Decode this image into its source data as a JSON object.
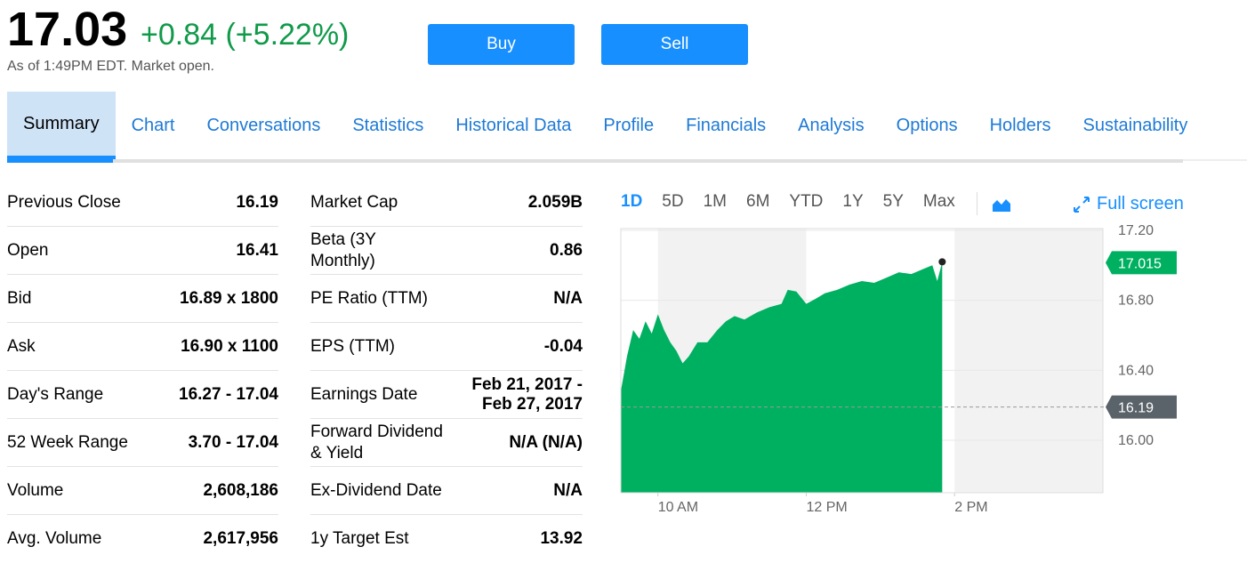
{
  "header": {
    "price": "17.03",
    "change": "+0.84 (+5.22%)",
    "as_of": "As of 1:49PM EDT. Market open."
  },
  "buttons": [
    "Buy",
    "Sell"
  ],
  "tabs": [
    "Summary",
    "Chart",
    "Conversations",
    "Statistics",
    "Historical Data",
    "Profile",
    "Financials",
    "Analysis",
    "Options",
    "Holders",
    "Sustainability"
  ],
  "summary_left": [
    [
      "Previous Close",
      "16.19"
    ],
    [
      "Open",
      "16.41"
    ],
    [
      "Bid",
      "16.89 x 1800"
    ],
    [
      "Ask",
      "16.90 x 1100"
    ],
    [
      "Day's Range",
      "16.27 - 17.04"
    ],
    [
      "52 Week Range",
      "3.70 - 17.04"
    ],
    [
      "Volume",
      "2,608,186"
    ],
    [
      "Avg. Volume",
      "2,617,956"
    ]
  ],
  "summary_right": [
    [
      "Market Cap",
      "2.059B"
    ],
    [
      "Beta (3Y\nMonthly)",
      "0.86"
    ],
    [
      "PE Ratio (TTM)",
      "N/A"
    ],
    [
      "EPS (TTM)",
      "-0.04"
    ],
    [
      "Earnings Date",
      "Feb 21, 2017 -\nFeb 27, 2017"
    ],
    [
      "Forward Dividend\n& Yield",
      "N/A (N/A)"
    ],
    [
      "Ex-Dividend Date",
      "N/A"
    ],
    [
      "1y Target Est",
      "13.92"
    ]
  ],
  "range_buttons": [
    "1D",
    "5D",
    "1M",
    "6M",
    "YTD",
    "1Y",
    "5Y",
    "Max"
  ],
  "full_screen": "Full screen",
  "chart_data": {
    "type": "area",
    "color": "#00b061",
    "x": [
      570,
      575,
      580,
      585,
      590,
      595,
      600,
      605,
      610,
      615,
      620,
      625,
      632,
      640,
      648,
      655,
      662,
      670,
      680,
      690,
      700,
      705,
      712,
      720,
      728,
      735,
      745,
      755,
      765,
      775,
      785,
      795,
      805,
      815,
      822,
      826,
      830
    ],
    "values": [
      16.28,
      16.48,
      16.63,
      16.58,
      16.68,
      16.61,
      16.72,
      16.63,
      16.56,
      16.51,
      16.44,
      16.48,
      16.56,
      16.56,
      16.63,
      16.68,
      16.71,
      16.69,
      16.73,
      16.76,
      16.78,
      16.86,
      16.85,
      16.78,
      16.81,
      16.84,
      16.86,
      16.89,
      16.91,
      16.9,
      16.93,
      16.96,
      16.95,
      16.98,
      17.0,
      16.91,
      17.02
    ],
    "xlim": [
      570,
      960
    ],
    "xticks": [
      {
        "value": 600,
        "label": "10 AM"
      },
      {
        "value": 720,
        "label": "12 PM"
      },
      {
        "value": 840,
        "label": "2 PM"
      }
    ],
    "ylim": [
      15.7,
      17.21
    ],
    "yticks": [
      {
        "value": 16,
        "label": "16.00"
      },
      {
        "value": 16.4,
        "label": "16.40"
      },
      {
        "value": 16.8,
        "label": "16.80"
      },
      {
        "value": 17.2,
        "label": "17.20"
      }
    ],
    "grid": true,
    "markers": [
      {
        "value": 17.015,
        "color": "#00b061"
      },
      {
        "value": 16.19,
        "color": "#5b636a"
      }
    ]
  }
}
